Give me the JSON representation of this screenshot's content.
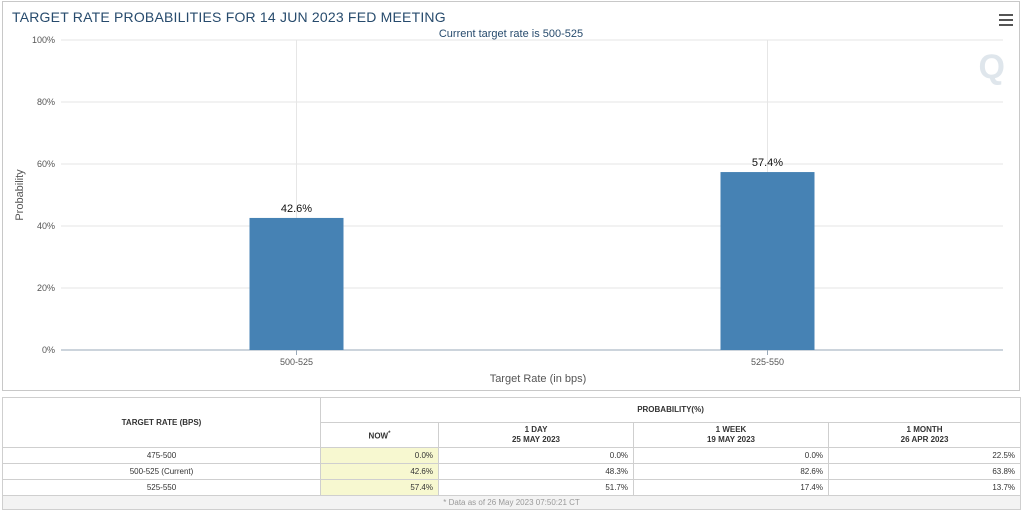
{
  "chart_title": "TARGET RATE PROBABILITIES FOR 14 JUN 2023 FED MEETING",
  "icons": {
    "menu": "hamburger-menu-icon",
    "watermark": "Q"
  },
  "colors": {
    "bar": "#4682b4",
    "title": "#274b6d",
    "now_cell": "#f7f8d0"
  },
  "chart_data": {
    "type": "bar",
    "title": "TARGET RATE PROBABILITIES FOR 14 JUN 2023 FED MEETING",
    "subtitle": "Current target rate is 500-525",
    "xlabel": "Target Rate (in bps)",
    "ylabel": "Probability",
    "categories": [
      "500-525",
      "525-550"
    ],
    "values": [
      42.6,
      57.4
    ],
    "data_labels": [
      "42.6%",
      "57.4%"
    ],
    "ylim": [
      0,
      100
    ],
    "yticks": [
      0,
      20,
      40,
      60,
      80,
      100
    ],
    "ytick_labels": [
      "0%",
      "20%",
      "40%",
      "60%",
      "80%",
      "100%"
    ],
    "grid": true,
    "legend": "none"
  },
  "table": {
    "header_rate": "TARGET RATE (BPS)",
    "header_prob": "PROBABILITY(%)",
    "columns": [
      {
        "label": "NOW",
        "sup": "*",
        "date": ""
      },
      {
        "label": "1 DAY",
        "sup": "",
        "date": "25 MAY 2023"
      },
      {
        "label": "1 WEEK",
        "sup": "",
        "date": "19 MAY 2023"
      },
      {
        "label": "1 MONTH",
        "sup": "",
        "date": "26 APR 2023"
      }
    ],
    "rows": [
      {
        "rate": "475-500",
        "values": [
          "0.0%",
          "0.0%",
          "0.0%",
          "22.5%"
        ]
      },
      {
        "rate": "500-525 (Current)",
        "values": [
          "42.6%",
          "48.3%",
          "82.6%",
          "63.8%"
        ]
      },
      {
        "rate": "525-550",
        "values": [
          "57.4%",
          "51.7%",
          "17.4%",
          "13.7%"
        ]
      }
    ],
    "footnote": "* Data as of 26 May 2023 07:50:21 CT"
  }
}
